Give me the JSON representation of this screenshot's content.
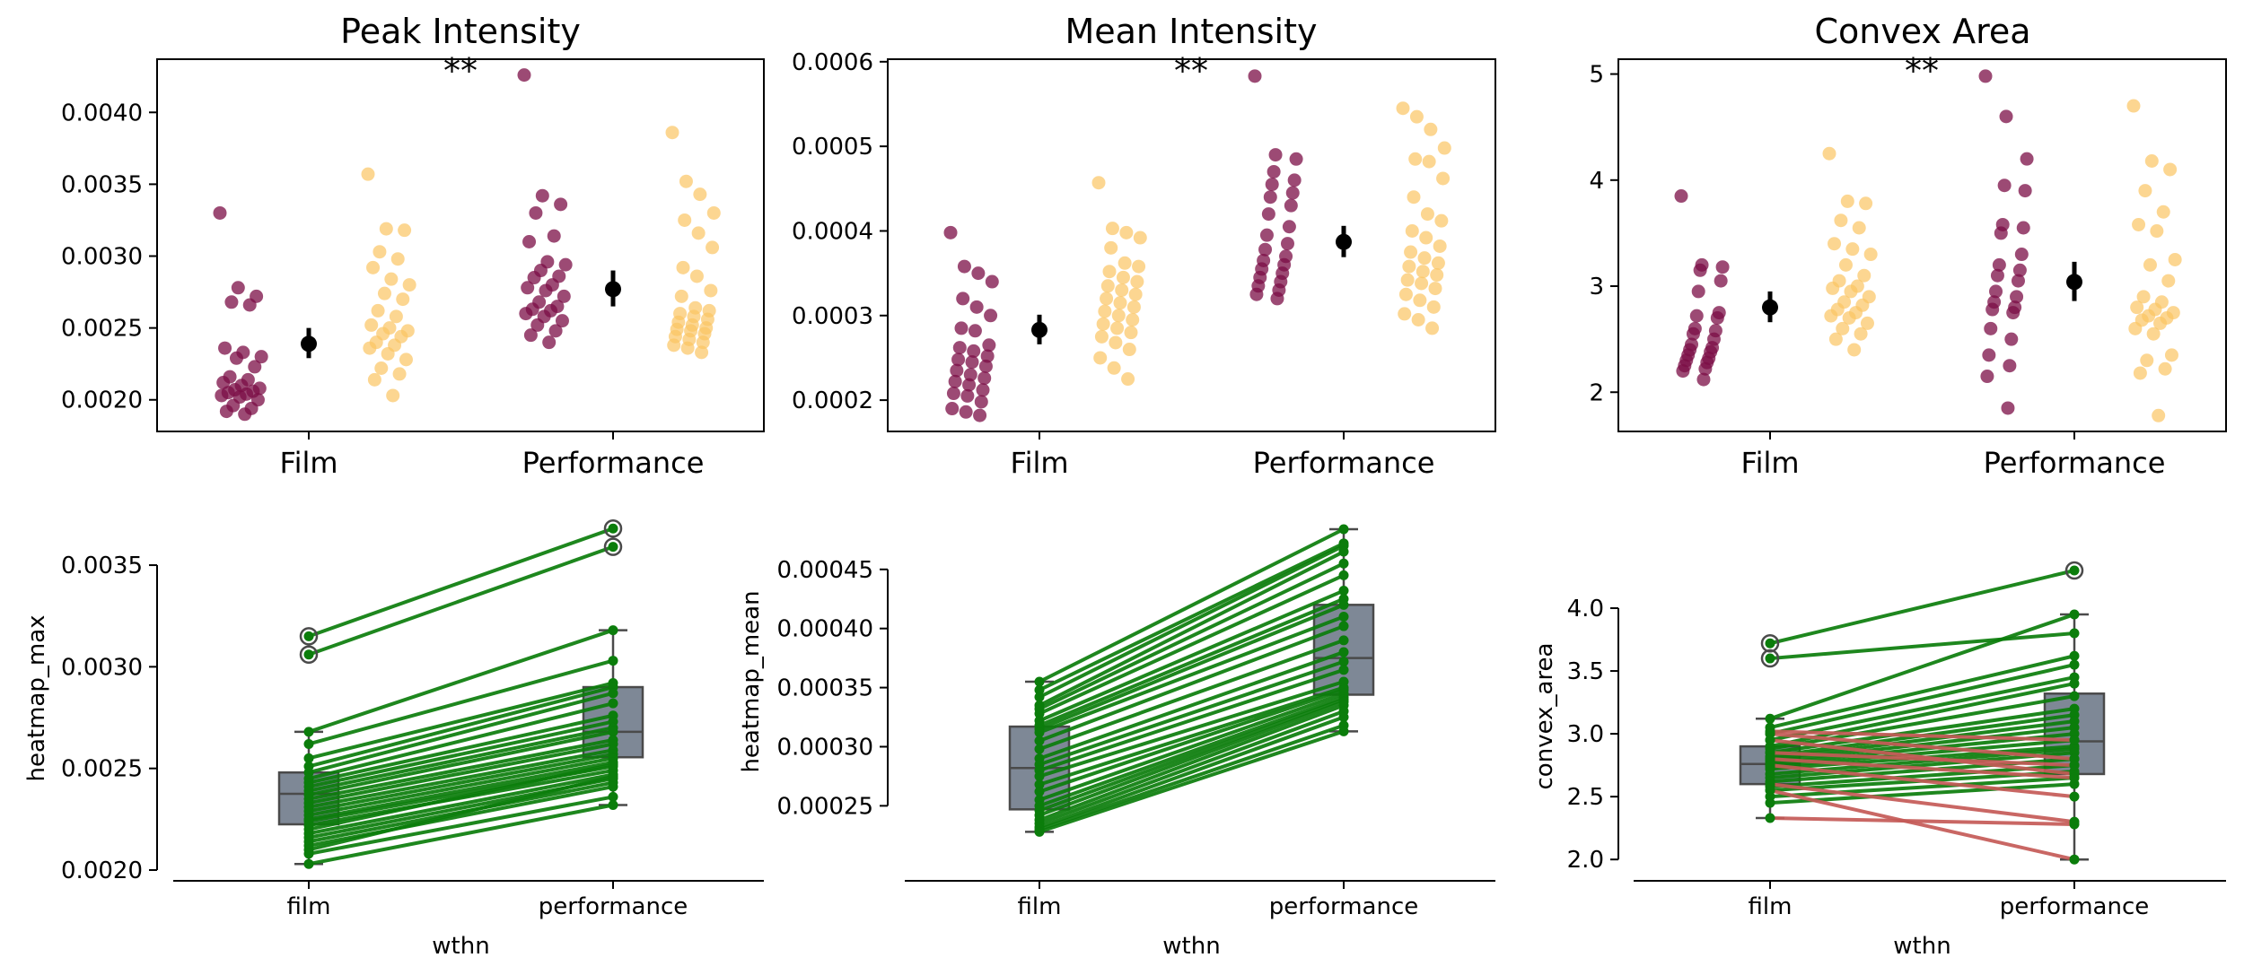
{
  "colors": {
    "film": "#7b0d45",
    "performance": "#fbc462",
    "mean_marker": "#000000",
    "box_fill": "#7e8896",
    "box_edge": "#4a4a4a",
    "line_up": "#0b7d0b",
    "line_down": "#c45a57"
  },
  "chart_data": [
    {
      "id": "peak",
      "type": "strip",
      "title": "Peak Intensity",
      "significance": "**",
      "categories": [
        "Film",
        "Performance"
      ],
      "ylim": [
        0.00178,
        0.00437
      ],
      "yticks": [
        0.002,
        0.0025,
        0.003,
        0.0035,
        0.004
      ],
      "ytick_labels": [
        "0.0020",
        "0.0025",
        "0.0030",
        "0.0035",
        "0.0040"
      ],
      "series": [
        {
          "name": "Film",
          "category": 0,
          "values": [
            0.0033,
            0.00278,
            0.00272,
            0.00268,
            0.00266,
            0.00236,
            0.00233,
            0.0023,
            0.00229,
            0.00223,
            0.00216,
            0.00214,
            0.00212,
            0.0021,
            0.00208,
            0.00207,
            0.00206,
            0.00205,
            0.00204,
            0.00203,
            0.00202,
            0.002,
            0.00196,
            0.00194,
            0.00192,
            0.0019
          ]
        },
        {
          "name": "Film",
          "category": 1,
          "values": [
            0.00426,
            0.00342,
            0.00336,
            0.0033,
            0.00314,
            0.0031,
            0.00296,
            0.00294,
            0.0029,
            0.00286,
            0.00285,
            0.0028,
            0.00278,
            0.00276,
            0.00272,
            0.00268,
            0.00265,
            0.00263,
            0.00262,
            0.0026,
            0.00258,
            0.00255,
            0.00252,
            0.00248,
            0.00245,
            0.0024
          ]
        },
        {
          "name": "Performance",
          "category": 0,
          "values": [
            0.00357,
            0.00319,
            0.00318,
            0.00303,
            0.00298,
            0.00292,
            0.00284,
            0.0028,
            0.00274,
            0.0027,
            0.00262,
            0.00258,
            0.00252,
            0.0025,
            0.00248,
            0.00246,
            0.00244,
            0.0024,
            0.00238,
            0.00236,
            0.00232,
            0.00228,
            0.00222,
            0.00218,
            0.00214,
            0.00203
          ]
        },
        {
          "name": "Performance",
          "category": 1,
          "values": [
            0.00386,
            0.00352,
            0.00343,
            0.0033,
            0.00325,
            0.00316,
            0.00306,
            0.00292,
            0.00286,
            0.00276,
            0.00272,
            0.00264,
            0.00262,
            0.0026,
            0.00258,
            0.00256,
            0.00254,
            0.00252,
            0.0025,
            0.00249,
            0.00248,
            0.00246,
            0.00244,
            0.00242,
            0.0024,
            0.00238,
            0.00236,
            0.00233
          ]
        }
      ],
      "means": [
        {
          "category": 0,
          "mean": 0.00239,
          "lower": 0.00229,
          "upper": 0.0025
        },
        {
          "category": 1,
          "mean": 0.00277,
          "lower": 0.00265,
          "upper": 0.0029
        }
      ]
    },
    {
      "id": "mean",
      "type": "strip",
      "title": "Mean Intensity",
      "significance": "**",
      "categories": [
        "Film",
        "Performance"
      ],
      "ylim": [
        0.000163,
        0.000603
      ],
      "yticks": [
        0.0002,
        0.0003,
        0.0004,
        0.0005,
        0.0006
      ],
      "ytick_labels": [
        "0.0002",
        "0.0003",
        "0.0004",
        "0.0005",
        "0.0006"
      ],
      "series": [
        {
          "name": "Film",
          "category": 0,
          "values": [
            0.000398,
            0.000358,
            0.00035,
            0.00034,
            0.00032,
            0.00031,
            0.0003,
            0.000285,
            0.000282,
            0.000265,
            0.000262,
            0.000258,
            0.000252,
            0.000248,
            0.000245,
            0.00024,
            0.000235,
            0.00023,
            0.000226,
            0.000222,
            0.000218,
            0.000212,
            0.000208,
            0.000205,
            0.000198,
            0.00019,
            0.000186,
            0.000182
          ]
        },
        {
          "name": "Film",
          "category": 1,
          "values": [
            0.000583,
            0.00049,
            0.000485,
            0.00047,
            0.00046,
            0.000455,
            0.000445,
            0.00044,
            0.00043,
            0.00042,
            0.000405,
            0.000395,
            0.000385,
            0.000378,
            0.00037,
            0.000365,
            0.00036,
            0.000355,
            0.00035,
            0.000345,
            0.00034,
            0.000335,
            0.00033,
            0.000325,
            0.00032
          ]
        },
        {
          "name": "Performance",
          "category": 0,
          "values": [
            0.000457,
            0.000403,
            0.000398,
            0.000392,
            0.00038,
            0.000362,
            0.000358,
            0.000352,
            0.000345,
            0.00034,
            0.000335,
            0.00033,
            0.000325,
            0.00032,
            0.000315,
            0.00031,
            0.000305,
            0.0003,
            0.000295,
            0.00029,
            0.000285,
            0.00028,
            0.000275,
            0.000268,
            0.00026,
            0.00025,
            0.000238,
            0.000225
          ]
        },
        {
          "name": "Performance",
          "category": 1,
          "values": [
            0.000545,
            0.000535,
            0.00052,
            0.000498,
            0.000485,
            0.000482,
            0.000462,
            0.00044,
            0.00042,
            0.000412,
            0.0004,
            0.000392,
            0.000382,
            0.000375,
            0.000368,
            0.000362,
            0.000358,
            0.000352,
            0.000348,
            0.000342,
            0.000338,
            0.000332,
            0.000325,
            0.000318,
            0.00031,
            0.000302,
            0.000295,
            0.000285
          ]
        }
      ],
      "means": [
        {
          "category": 0,
          "mean": 0.000283,
          "lower": 0.000266,
          "upper": 0.000301
        },
        {
          "category": 1,
          "mean": 0.000387,
          "lower": 0.000369,
          "upper": 0.000406
        }
      ]
    },
    {
      "id": "convex",
      "type": "strip",
      "title": "Convex Area",
      "significance": "**",
      "categories": [
        "Film",
        "Performance"
      ],
      "ylim": [
        1.63,
        5.14
      ],
      "yticks": [
        2,
        3,
        4,
        5
      ],
      "ytick_labels": [
        "2",
        "3",
        "4",
        "5"
      ],
      "series": [
        {
          "name": "Film",
          "category": 0,
          "values": [
            3.85,
            3.2,
            3.18,
            3.15,
            3.05,
            2.95,
            2.75,
            2.72,
            2.7,
            2.6,
            2.58,
            2.55,
            2.5,
            2.45,
            2.42,
            2.4,
            2.38,
            2.35,
            2.32,
            2.3,
            2.28,
            2.25,
            2.22,
            2.2,
            2.12
          ]
        },
        {
          "name": "Film",
          "category": 1,
          "values": [
            4.98,
            4.6,
            4.2,
            3.95,
            3.9,
            3.58,
            3.55,
            3.5,
            3.3,
            3.2,
            3.15,
            3.1,
            3.05,
            2.95,
            2.9,
            2.85,
            2.8,
            2.78,
            2.75,
            2.6,
            2.5,
            2.35,
            2.25,
            2.15,
            1.85
          ]
        },
        {
          "name": "Performance",
          "category": 0,
          "values": [
            4.25,
            3.8,
            3.78,
            3.62,
            3.55,
            3.4,
            3.35,
            3.3,
            3.2,
            3.1,
            3.05,
            3.0,
            2.98,
            2.95,
            2.9,
            2.85,
            2.82,
            2.78,
            2.75,
            2.72,
            2.7,
            2.65,
            2.6,
            2.55,
            2.5,
            2.4
          ]
        },
        {
          "name": "Performance",
          "category": 1,
          "values": [
            4.7,
            4.18,
            4.1,
            3.9,
            3.7,
            3.58,
            3.52,
            3.25,
            3.2,
            3.05,
            2.9,
            2.85,
            2.8,
            2.78,
            2.75,
            2.72,
            2.7,
            2.68,
            2.65,
            2.6,
            2.55,
            2.35,
            2.3,
            2.22,
            2.18,
            1.78
          ]
        }
      ],
      "means": [
        {
          "category": 0,
          "mean": 2.8,
          "lower": 2.66,
          "upper": 2.95
        },
        {
          "category": 1,
          "mean": 3.04,
          "lower": 2.86,
          "upper": 3.23
        }
      ]
    },
    {
      "id": "paired_max",
      "type": "paired-box",
      "xlabel": "wthn",
      "ylabel": "heatmap_max",
      "categories": [
        "film",
        "performance"
      ],
      "ylim": [
        0.002,
        0.00369
      ],
      "yticks": [
        0.002,
        0.0025,
        0.003,
        0.0035
      ],
      "ytick_labels": [
        "0.0020",
        "0.0025",
        "0.0030",
        "0.0035"
      ],
      "boxes": [
        {
          "category": 0,
          "q1": 0.002225,
          "median": 0.002375,
          "q3": 0.00248,
          "whisker_low": 0.00203,
          "whisker_high": 0.00268,
          "outliers": [
            0.00315,
            0.00306
          ]
        },
        {
          "category": 1,
          "q1": 0.002555,
          "median": 0.00268,
          "q3": 0.0029,
          "whisker_low": 0.00232,
          "whisker_high": 0.00318,
          "outliers": [
            0.00368,
            0.00359
          ]
        }
      ],
      "pairs": [
        [
          0.00315,
          0.00368
        ],
        [
          0.00306,
          0.00359
        ],
        [
          0.00268,
          0.00318
        ],
        [
          0.00262,
          0.00303
        ],
        [
          0.00255,
          0.00292
        ],
        [
          0.00251,
          0.0029
        ],
        [
          0.00248,
          0.00287
        ],
        [
          0.00245,
          0.00282
        ],
        [
          0.00243,
          0.00276
        ],
        [
          0.00241,
          0.00273
        ],
        [
          0.00239,
          0.0027
        ],
        [
          0.00237,
          0.00268
        ],
        [
          0.00235,
          0.00264
        ],
        [
          0.00233,
          0.00262
        ],
        [
          0.00231,
          0.00259
        ],
        [
          0.00229,
          0.00257
        ],
        [
          0.00227,
          0.00255
        ],
        [
          0.00225,
          0.00253
        ],
        [
          0.00224,
          0.00251
        ],
        [
          0.00222,
          0.00249
        ],
        [
          0.0022,
          0.00252
        ],
        [
          0.00218,
          0.00247
        ],
        [
          0.00216,
          0.00245
        ],
        [
          0.00214,
          0.00243
        ],
        [
          0.00212,
          0.00241
        ],
        [
          0.0021,
          0.00246
        ],
        [
          0.00208,
          0.00236
        ],
        [
          0.00203,
          0.00232
        ]
      ]
    },
    {
      "id": "paired_mean",
      "type": "paired-box",
      "xlabel": "wthn",
      "ylabel": "heatmap_mean",
      "categories": [
        "film",
        "performance"
      ],
      "ylim": [
        0.000226,
        0.000484
      ],
      "yticks": [
        0.00025,
        0.0003,
        0.00035,
        0.0004,
        0.00045
      ],
      "ytick_labels": [
        "0.00025",
        "0.00030",
        "0.00035",
        "0.00040",
        "0.00045"
      ],
      "boxes": [
        {
          "category": 0,
          "q1": 0.000247,
          "median": 0.000282,
          "q3": 0.000317,
          "whisker_low": 0.000228,
          "whisker_high": 0.000355,
          "outliers": []
        },
        {
          "category": 1,
          "q1": 0.000344,
          "median": 0.000375,
          "q3": 0.00042,
          "whisker_low": 0.000313,
          "whisker_high": 0.000484,
          "outliers": []
        }
      ],
      "pairs": [
        [
          0.000355,
          0.000484
        ],
        [
          0.000348,
          0.000472
        ],
        [
          0.000342,
          0.00047
        ],
        [
          0.000335,
          0.000465
        ],
        [
          0.000332,
          0.000455
        ],
        [
          0.000328,
          0.000445
        ],
        [
          0.000322,
          0.000432
        ],
        [
          0.000318,
          0.000425
        ],
        [
          0.000315,
          0.00042
        ],
        [
          0.000312,
          0.00041
        ],
        [
          0.000305,
          0.000402
        ],
        [
          0.000298,
          0.00039
        ],
        [
          0.00029,
          0.00038
        ],
        [
          0.000285,
          0.000372
        ],
        [
          0.00028,
          0.000365
        ],
        [
          0.000275,
          0.000355
        ],
        [
          0.000268,
          0.00035
        ],
        [
          0.000262,
          0.000348
        ],
        [
          0.000255,
          0.000345
        ],
        [
          0.00025,
          0.000342
        ],
        [
          0.000246,
          0.00034
        ],
        [
          0.000242,
          0.000338
        ],
        [
          0.000238,
          0.000335
        ],
        [
          0.000235,
          0.00033
        ],
        [
          0.000232,
          0.000325
        ],
        [
          0.00023,
          0.000318
        ],
        [
          0.000228,
          0.000313
        ]
      ]
    },
    {
      "id": "paired_convex",
      "type": "paired-box",
      "xlabel": "wthn",
      "ylabel": "convex_area",
      "categories": [
        "film",
        "performance"
      ],
      "ylim": [
        1.98,
        4.3
      ],
      "yticks": [
        2.0,
        2.5,
        3.0,
        3.5,
        4.0
      ],
      "ytick_labels": [
        "2.0",
        "2.5",
        "3.0",
        "3.5",
        "4.0"
      ],
      "boxes": [
        {
          "category": 0,
          "q1": 2.6,
          "median": 2.76,
          "q3": 2.9,
          "whisker_low": 2.33,
          "whisker_high": 3.12,
          "outliers": [
            3.72,
            3.6
          ]
        },
        {
          "category": 1,
          "q1": 2.68,
          "median": 2.94,
          "q3": 3.32,
          "whisker_low": 2.0,
          "whisker_high": 3.95,
          "outliers": [
            4.3
          ]
        }
      ],
      "pairs": [
        [
          3.72,
          4.3
        ],
        [
          3.6,
          3.8
        ],
        [
          3.12,
          3.95
        ],
        [
          3.05,
          3.62
        ],
        [
          3.0,
          3.55
        ],
        [
          2.95,
          3.45
        ],
        [
          2.9,
          3.4
        ],
        [
          2.88,
          3.3
        ],
        [
          2.85,
          3.2
        ],
        [
          2.82,
          3.15
        ],
        [
          2.8,
          3.1
        ],
        [
          2.78,
          3.05
        ],
        [
          2.76,
          3.0
        ],
        [
          2.74,
          2.95
        ],
        [
          2.72,
          2.9
        ],
        [
          2.68,
          2.88
        ],
        [
          2.65,
          2.85
        ],
        [
          2.62,
          2.8
        ],
        [
          2.58,
          2.75
        ],
        [
          2.55,
          2.7
        ],
        [
          2.5,
          2.65
        ],
        [
          2.45,
          2.6
        ],
        [
          3.02,
          2.95
        ],
        [
          3.0,
          2.8
        ],
        [
          2.95,
          2.68
        ],
        [
          2.85,
          2.75
        ],
        [
          2.8,
          2.65
        ],
        [
          2.75,
          2.5
        ],
        [
          2.6,
          2.3
        ],
        [
          2.55,
          2.0
        ],
        [
          2.33,
          2.28
        ]
      ]
    }
  ]
}
